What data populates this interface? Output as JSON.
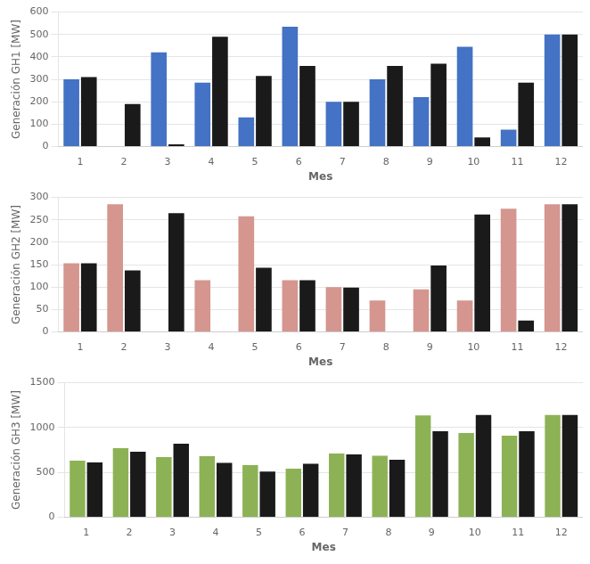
{
  "chart_data": [
    {
      "type": "bar",
      "categories": [
        1,
        2,
        3,
        4,
        5,
        6,
        7,
        8,
        9,
        10,
        11,
        12
      ],
      "xlabel": "Mes",
      "ylabel": "Generación GH1 [MW]",
      "series": [
        {
          "color": "#4472C4",
          "values": [
            300,
            0,
            420,
            285,
            130,
            535,
            200,
            300,
            220,
            445,
            75,
            500
          ]
        },
        {
          "color": "#1a1a1a",
          "values": [
            310,
            190,
            10,
            490,
            315,
            360,
            200,
            360,
            370,
            40,
            285,
            500
          ]
        }
      ],
      "ylim": [
        0,
        600
      ],
      "yticks": [
        0,
        100,
        200,
        300,
        400,
        500,
        600
      ],
      "grid": true
    },
    {
      "type": "bar",
      "categories": [
        1,
        2,
        3,
        4,
        5,
        6,
        7,
        8,
        9,
        10,
        11,
        12
      ],
      "xlabel": "Mes",
      "ylabel": "Generación GH2 [MW]",
      "series": [
        {
          "color": "#D4968F",
          "values": [
            153,
            285,
            0,
            115,
            258,
            115,
            100,
            70,
            95,
            70,
            275,
            285
          ]
        },
        {
          "color": "#1a1a1a",
          "values": [
            153,
            137,
            265,
            0,
            143,
            115,
            99,
            0,
            148,
            262,
            25,
            285
          ]
        }
      ],
      "ylim": [
        0,
        300
      ],
      "yticks": [
        0,
        50,
        100,
        150,
        200,
        250,
        300
      ],
      "grid": true
    },
    {
      "type": "bar",
      "categories": [
        1,
        2,
        3,
        4,
        5,
        6,
        7,
        8,
        9,
        10,
        11,
        12
      ],
      "xlabel": "Mes",
      "ylabel": "Generación GH3 [MW]",
      "series": [
        {
          "color": "#8DB255",
          "values": [
            630,
            770,
            670,
            680,
            580,
            540,
            710,
            685,
            1135,
            940,
            910,
            1140
          ]
        },
        {
          "color": "#1a1a1a",
          "values": [
            610,
            730,
            820,
            605,
            510,
            595,
            700,
            640,
            960,
            1140,
            960,
            1140
          ]
        }
      ],
      "ylim": [
        0,
        1500
      ],
      "yticks": [
        0,
        500,
        1000,
        1500
      ],
      "grid": true
    }
  ]
}
